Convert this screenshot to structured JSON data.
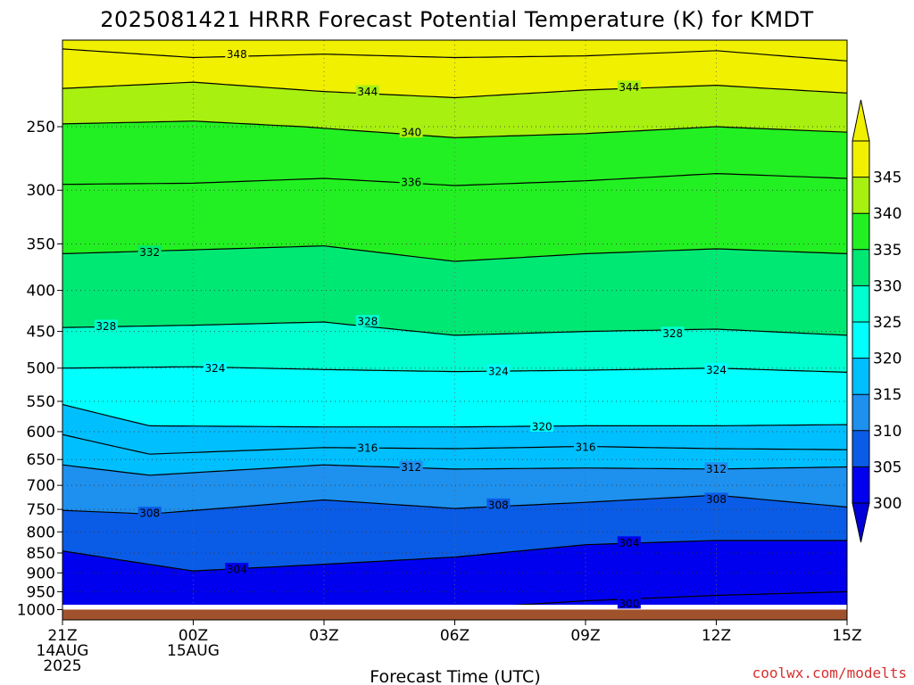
{
  "chart_data": {
    "type": "contour",
    "title": "2025081421 HRRR Forecast Potential Temperature (K) for KMDT",
    "xlabel": "Forecast Time (UTC)",
    "ylabel": "",
    "credit": "coolwx.com/modelts",
    "x_ticks": [
      {
        "hours": 0,
        "lines": [
          "21Z",
          "14AUG",
          "2025"
        ]
      },
      {
        "hours": 3,
        "lines": [
          "00Z",
          "15AUG"
        ]
      },
      {
        "hours": 6,
        "lines": [
          "03Z"
        ]
      },
      {
        "hours": 9,
        "lines": [
          "06Z"
        ]
      },
      {
        "hours": 12,
        "lines": [
          "09Z"
        ]
      },
      {
        "hours": 15,
        "lines": [
          "12Z"
        ]
      },
      {
        "hours": 18,
        "lines": [
          "15Z"
        ]
      }
    ],
    "xlim": [
      0,
      18
    ],
    "y_axis": "pressure (hPa), reversed, log scale",
    "ylim": [
      1030,
      195
    ],
    "y_ticks": [
      1000,
      950,
      900,
      850,
      800,
      750,
      700,
      650,
      600,
      550,
      500,
      450,
      400,
      350,
      300,
      250
    ],
    "surface_pressure": 1000,
    "colorbar": {
      "labels": [
        300,
        305,
        310,
        315,
        320,
        325,
        330,
        335,
        340,
        345
      ],
      "colors": [
        "#0000ee",
        "#0a5ce6",
        "#1e90ee",
        "#00bfff",
        "#00ffff",
        "#00ffd0",
        "#00e874",
        "#22f022",
        "#a8f010",
        "#f0f000"
      ],
      "extend": "both"
    },
    "contour_interval": 4,
    "isentropes": [
      {
        "theta": 348,
        "hours": [
          0,
          3,
          6,
          9,
          12,
          15,
          18
        ],
        "pressure": [
          200,
          205,
          203,
          205,
          204,
          201,
          207
        ]
      },
      {
        "theta": 344,
        "hours": [
          0,
          3,
          6,
          9,
          12,
          15,
          18
        ],
        "pressure": [
          224,
          220,
          226,
          230,
          225,
          222,
          227
        ]
      },
      {
        "theta": 340,
        "hours": [
          0,
          3,
          5.5,
          9,
          12,
          15,
          18
        ],
        "pressure": [
          248,
          246,
          250,
          258,
          255,
          250,
          254
        ]
      },
      {
        "theta": 336,
        "hours": [
          0,
          3,
          6,
          9,
          12,
          15,
          18
        ],
        "pressure": [
          295,
          294,
          290,
          296,
          292,
          286,
          290
        ]
      },
      {
        "theta": 332,
        "hours": [
          0,
          3,
          6,
          9,
          12,
          15,
          18
        ],
        "pressure": [
          360,
          356,
          352,
          368,
          360,
          355,
          360
        ]
      },
      {
        "theta": 328,
        "hours": [
          0,
          3,
          6,
          9,
          12,
          15,
          18
        ],
        "pressure": [
          445,
          442,
          438,
          455,
          450,
          447,
          455
        ]
      },
      {
        "theta": 324,
        "hours": [
          0,
          3,
          6,
          9,
          12,
          15,
          18
        ],
        "pressure": [
          500,
          498,
          502,
          505,
          503,
          500,
          506
        ]
      },
      {
        "theta": 320,
        "hours": [
          0,
          2,
          6,
          9,
          12,
          15,
          18
        ],
        "pressure": [
          555,
          590,
          592,
          592,
          590,
          590,
          588
        ]
      },
      {
        "theta": 316,
        "hours": [
          0,
          2,
          6,
          9,
          12,
          15,
          18
        ],
        "pressure": [
          605,
          640,
          628,
          630,
          626,
          630,
          632
        ]
      },
      {
        "theta": 312,
        "hours": [
          0,
          2,
          6,
          9,
          12,
          15,
          18
        ],
        "pressure": [
          660,
          680,
          660,
          668,
          666,
          668,
          664
        ]
      },
      {
        "theta": 308,
        "hours": [
          0,
          2,
          6,
          9,
          12,
          15,
          18
        ],
        "pressure": [
          752,
          760,
          730,
          748,
          735,
          720,
          745
        ]
      },
      {
        "theta": 304,
        "hours": [
          0,
          3,
          6,
          9,
          12,
          15,
          18
        ],
        "pressure": [
          845,
          895,
          878,
          860,
          830,
          820,
          820
        ]
      },
      {
        "theta": 300,
        "hours": [
          8,
          10,
          12,
          15,
          18
        ],
        "pressure": [
          1000,
          990,
          975,
          960,
          950
        ]
      }
    ],
    "contour_labels": [
      {
        "value": "348",
        "hours": 4.0,
        "pressure": 203
      },
      {
        "value": "344",
        "hours": 7.0,
        "pressure": 226
      },
      {
        "value": "344",
        "hours": 13.0,
        "pressure": 223
      },
      {
        "value": "340",
        "hours": 8.0,
        "pressure": 254
      },
      {
        "value": "336",
        "hours": 8.0,
        "pressure": 293
      },
      {
        "value": "332",
        "hours": 2.0,
        "pressure": 358
      },
      {
        "value": "328",
        "hours": 1.0,
        "pressure": 443
      },
      {
        "value": "328",
        "hours": 7.0,
        "pressure": 437
      },
      {
        "value": "328",
        "hours": 14.0,
        "pressure": 452
      },
      {
        "value": "324",
        "hours": 3.5,
        "pressure": 500
      },
      {
        "value": "324",
        "hours": 10.0,
        "pressure": 504
      },
      {
        "value": "324",
        "hours": 15.0,
        "pressure": 502
      },
      {
        "value": "320",
        "hours": 11.0,
        "pressure": 591
      },
      {
        "value": "316",
        "hours": 7.0,
        "pressure": 628
      },
      {
        "value": "316",
        "hours": 12.0,
        "pressure": 627
      },
      {
        "value": "312",
        "hours": 8.0,
        "pressure": 664
      },
      {
        "value": "312",
        "hours": 15.0,
        "pressure": 667
      },
      {
        "value": "308",
        "hours": 2.0,
        "pressure": 758
      },
      {
        "value": "308",
        "hours": 10.0,
        "pressure": 740
      },
      {
        "value": "308",
        "hours": 15.0,
        "pressure": 728
      },
      {
        "value": "304",
        "hours": 4.0,
        "pressure": 890
      },
      {
        "value": "304",
        "hours": 13.0,
        "pressure": 825
      },
      {
        "value": "300",
        "hours": 13.0,
        "pressure": 982
      }
    ],
    "grid": "dotted"
  }
}
